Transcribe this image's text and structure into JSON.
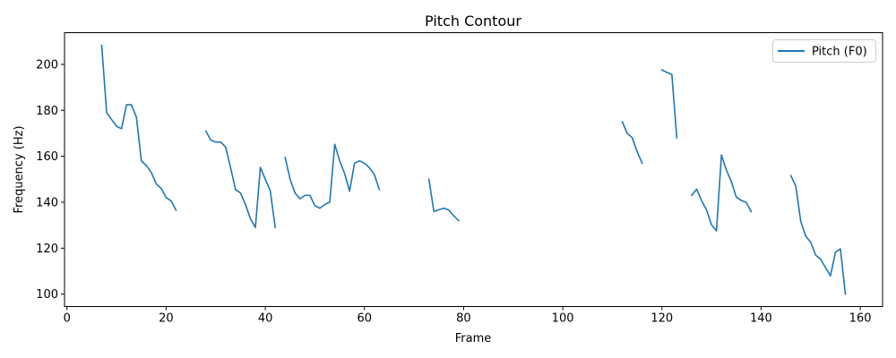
{
  "chart_data": {
    "type": "line",
    "title": "Pitch Contour",
    "xlabel": "Frame",
    "ylabel": "Frequency (Hz)",
    "xlim": [
      -0.5,
      164.5
    ],
    "ylim": [
      94.6,
      213.8
    ],
    "xticks": [
      0,
      20,
      40,
      60,
      80,
      100,
      120,
      140,
      160
    ],
    "yticks": [
      100,
      120,
      140,
      160,
      180,
      200
    ],
    "grid": false,
    "legend": {
      "location": "upper right",
      "entries": [
        "Pitch (F0)"
      ]
    },
    "colors": {
      "series": "#1f77b4"
    },
    "series": [
      {
        "name": "Pitch (F0)",
        "x": [
          0,
          1,
          2,
          3,
          4,
          5,
          6,
          7,
          8,
          9,
          10,
          11,
          12,
          13,
          14,
          15,
          16,
          17,
          18,
          19,
          20,
          21,
          22,
          23,
          24,
          25,
          26,
          27,
          28,
          29,
          30,
          31,
          32,
          33,
          34,
          35,
          36,
          37,
          38,
          39,
          40,
          41,
          42,
          43,
          44,
          45,
          46,
          47,
          48,
          49,
          50,
          51,
          52,
          53,
          54,
          55,
          56,
          57,
          58,
          59,
          60,
          61,
          62,
          63,
          64,
          65,
          66,
          67,
          68,
          69,
          70,
          71,
          72,
          73,
          74,
          75,
          76,
          77,
          78,
          79,
          80,
          81,
          82,
          83,
          84,
          85,
          86,
          87,
          88,
          89,
          90,
          91,
          92,
          93,
          94,
          95,
          96,
          97,
          98,
          99,
          100,
          101,
          102,
          103,
          104,
          105,
          106,
          107,
          108,
          109,
          110,
          111,
          112,
          113,
          114,
          115,
          116,
          117,
          118,
          119,
          120,
          121,
          122,
          123,
          124,
          125,
          126,
          127,
          128,
          129,
          130,
          131,
          132,
          133,
          134,
          135,
          136,
          137,
          138,
          139,
          140,
          141,
          142,
          143,
          144,
          145,
          146,
          147,
          148,
          149,
          150,
          151,
          152,
          153,
          154,
          155,
          156,
          157
        ],
        "y": [
          null,
          null,
          null,
          null,
          null,
          null,
          null,
          208.3,
          179.0,
          176.0,
          173.0,
          172.0,
          182.4,
          182.4,
          177.0,
          158.0,
          156.0,
          153.0,
          148.0,
          146.0,
          142.0,
          140.6,
          136.5,
          null,
          null,
          null,
          null,
          null,
          171.0,
          167.0,
          166.2,
          166.2,
          164.0,
          155.0,
          145.5,
          144.0,
          139.0,
          132.8,
          129.0,
          155.2,
          150.0,
          145.0,
          129.0,
          null,
          159.5,
          150.0,
          144.0,
          141.5,
          143.0,
          143.0,
          138.5,
          137.4,
          139.0,
          140.0,
          165.2,
          158.0,
          152.5,
          144.8,
          157.0,
          158.0,
          157.0,
          155.0,
          152.0,
          145.5,
          null,
          null,
          null,
          null,
          null,
          null,
          null,
          null,
          null,
          150.0,
          136.0,
          136.7,
          137.4,
          136.6,
          134.1,
          132.0,
          null,
          null,
          null,
          null,
          null,
          null,
          null,
          null,
          null,
          null,
          null,
          null,
          null,
          null,
          null,
          null,
          null,
          null,
          null,
          null,
          null,
          null,
          null,
          null,
          null,
          null,
          null,
          null,
          null,
          null,
          null,
          null,
          175.0,
          170.0,
          168.1,
          162.0,
          157.0,
          null,
          null,
          null,
          197.6,
          196.5,
          195.6,
          168.0,
          null,
          null,
          143.0,
          145.7,
          140.7,
          136.6,
          130.2,
          127.5,
          160.6,
          154.0,
          149.0,
          142.2,
          140.8,
          139.9,
          135.9,
          null,
          null,
          null,
          null,
          null,
          null,
          null,
          151.6,
          147.0,
          131.6,
          125.3,
          122.6,
          117.0,
          115.2,
          111.5,
          108.0,
          118.3,
          119.7,
          100.0
        ]
      }
    ]
  }
}
